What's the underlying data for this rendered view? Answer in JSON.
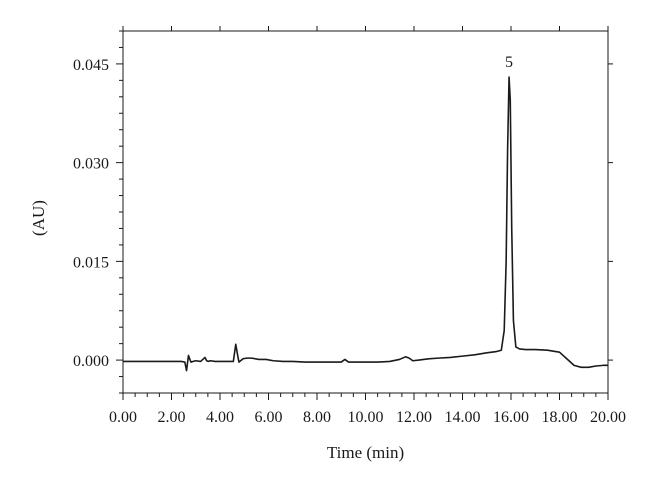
{
  "chart_data": {
    "type": "line",
    "title": "",
    "xlabel": "Time (min)",
    "ylabel": "(AU)",
    "xlim": [
      0,
      20
    ],
    "ylim": [
      -0.005,
      0.05
    ],
    "x_ticks": [
      {
        "value": 0,
        "label": "0.00"
      },
      {
        "value": 2,
        "label": "2.00"
      },
      {
        "value": 4,
        "label": "4.00"
      },
      {
        "value": 6,
        "label": "6.00"
      },
      {
        "value": 8,
        "label": "8.00"
      },
      {
        "value": 10,
        "label": "10.00"
      },
      {
        "value": 12,
        "label": "12.00"
      },
      {
        "value": 14,
        "label": "14.00"
      },
      {
        "value": 16,
        "label": "16.00"
      },
      {
        "value": 18,
        "label": "18.00"
      },
      {
        "value": 20,
        "label": "20.00"
      }
    ],
    "y_ticks": [
      {
        "value": 0,
        "label": "0.000"
      },
      {
        "value": 0.015,
        "label": "0.015"
      },
      {
        "value": 0.03,
        "label": "0.030"
      },
      {
        "value": 0.045,
        "label": "0.045"
      }
    ],
    "grid": false,
    "line_color": "#1a1a1a",
    "annotations": [
      {
        "text": "5",
        "x": 15.92,
        "y": 0.0445
      }
    ],
    "series": [
      {
        "x": [
          0,
          1,
          2,
          2.4,
          2.55,
          2.62,
          2.7,
          2.8,
          2.9,
          3.0,
          3.2,
          3.38,
          3.45,
          3.52,
          3.6,
          3.8,
          4.0,
          4.3,
          4.55,
          4.65,
          4.72,
          4.78,
          4.85,
          4.95,
          5.1,
          5.3,
          5.6,
          5.9,
          6.2,
          6.6,
          7.0,
          7.5,
          8.0,
          8.5,
          9.0,
          9.15,
          9.3,
          9.6,
          10.0,
          10.5,
          11.0,
          11.4,
          11.65,
          11.8,
          11.95,
          12.2,
          12.6,
          13.0,
          13.5,
          14.0,
          14.5,
          15.0,
          15.4,
          15.6,
          15.72,
          15.8,
          15.86,
          15.92,
          15.97,
          16.03,
          16.1,
          16.2,
          16.35,
          16.6,
          17.0,
          17.5,
          18.0,
          18.3,
          18.6,
          18.9,
          19.2,
          19.5,
          19.8,
          20.0
        ],
        "values": [
          -0.0002,
          -0.0002,
          -0.0002,
          -0.0002,
          -0.0003,
          -0.0016,
          0.0007,
          -0.0003,
          -0.0002,
          -0.0001,
          -0.0002,
          0.0004,
          -0.0001,
          -0.0002,
          -0.0001,
          -0.0002,
          -0.0002,
          -0.0002,
          -0.0002,
          0.0024,
          0.0009,
          -0.0003,
          -0.0001,
          0.0002,
          0.0003,
          0.0003,
          0.0001,
          0.0001,
          -0.0001,
          -0.0002,
          -0.0002,
          -0.0003,
          -0.0003,
          -0.0003,
          -0.0003,
          0.0001,
          -0.0003,
          -0.0003,
          -0.0003,
          -0.0003,
          -0.0002,
          0.0001,
          0.0005,
          0.0003,
          -0.0001,
          0.0,
          0.0002,
          0.0003,
          0.0004,
          0.0006,
          0.0008,
          0.0011,
          0.0013,
          0.0015,
          0.0045,
          0.015,
          0.032,
          0.043,
          0.0395,
          0.02,
          0.006,
          0.002,
          0.0017,
          0.0016,
          0.0016,
          0.0015,
          0.0012,
          0.0002,
          -0.0008,
          -0.0011,
          -0.0011,
          -0.0009,
          -0.0008,
          -0.0008
        ]
      }
    ]
  }
}
